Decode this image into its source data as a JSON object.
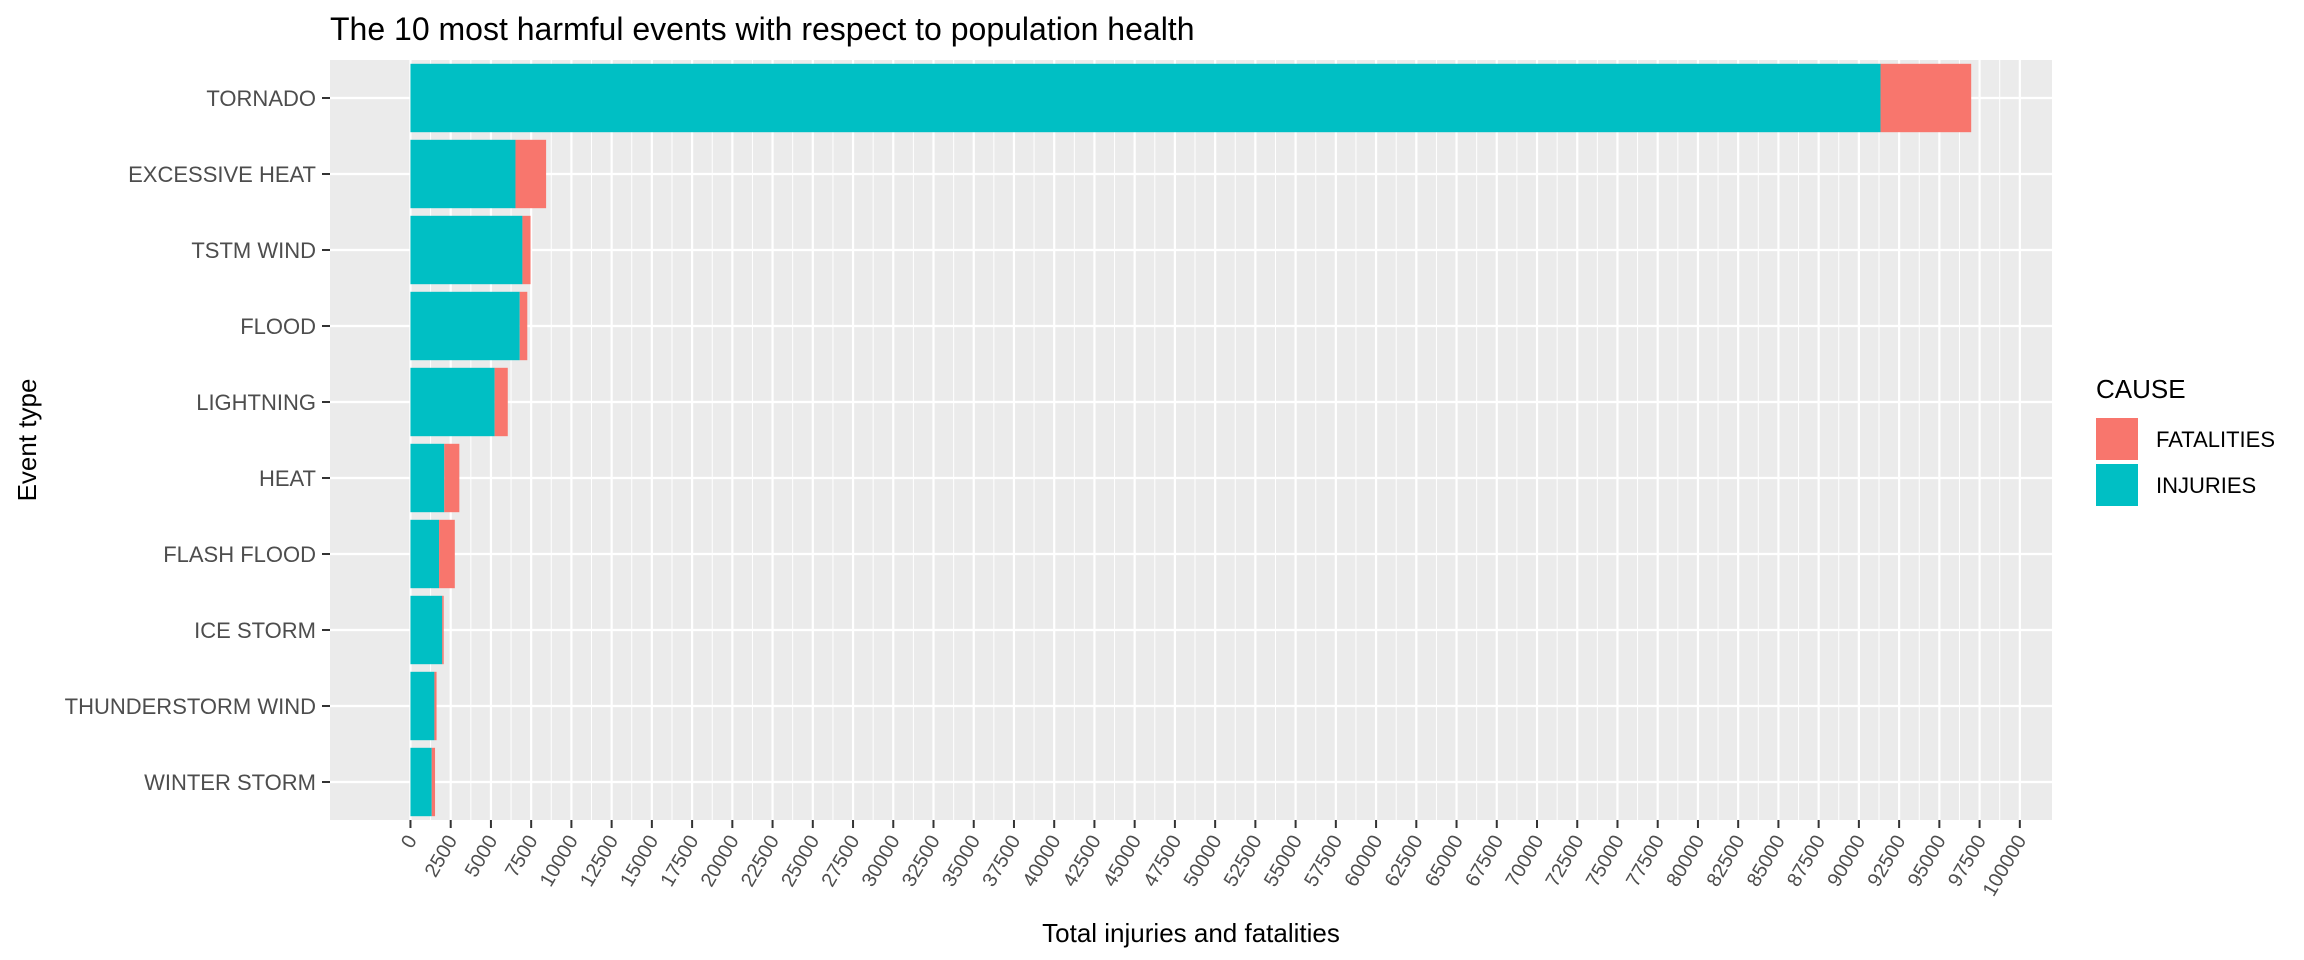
{
  "chart_data": {
    "type": "bar",
    "orientation": "horizontal",
    "stacked": true,
    "title": "The 10 most harmful events with respect to population health",
    "xlabel": "Total injuries and fatalities",
    "ylabel": "Event type",
    "xlim": [
      -5000,
      102000
    ],
    "x_ticks": [
      0,
      2500,
      5000,
      7500,
      10000,
      12500,
      15000,
      17500,
      20000,
      22500,
      25000,
      27500,
      30000,
      32500,
      35000,
      37500,
      40000,
      42500,
      45000,
      47500,
      50000,
      52500,
      55000,
      57500,
      60000,
      62500,
      65000,
      67500,
      70000,
      72500,
      75000,
      77500,
      80000,
      82500,
      85000,
      87500,
      90000,
      92500,
      95000,
      97500,
      100000
    ],
    "categories": [
      "TORNADO",
      "EXCESSIVE HEAT",
      "TSTM WIND",
      "FLOOD",
      "LIGHTNING",
      "HEAT",
      "FLASH FLOOD",
      "ICE STORM",
      "THUNDERSTORM WIND",
      "WINTER STORM"
    ],
    "series": [
      {
        "name": "INJURIES",
        "color": "#00BFC4",
        "values": [
          91346,
          6525,
          6957,
          6789,
          5230,
          2100,
          1777,
          1975,
          1488,
          1321
        ]
      },
      {
        "name": "FATALITIES",
        "color": "#F8766D",
        "values": [
          5633,
          1903,
          504,
          470,
          816,
          937,
          978,
          89,
          133,
          206
        ]
      }
    ],
    "grid": true,
    "panel_background": "#EBEBEB",
    "legend": {
      "title": "CAUSE",
      "position": "right",
      "entries": [
        "FATALITIES",
        "INJURIES"
      ]
    }
  }
}
